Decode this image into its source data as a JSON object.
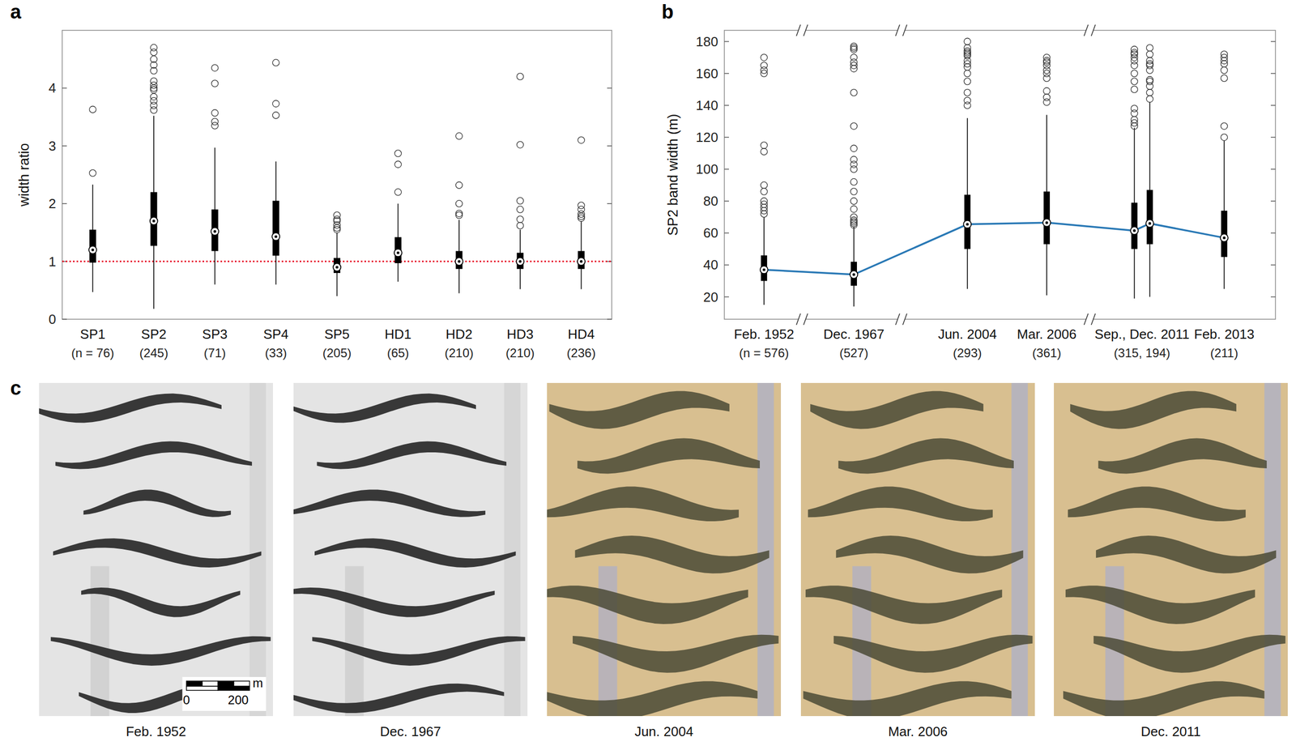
{
  "chart_data": [
    {
      "type": "box",
      "letter": "a",
      "y_label": "width ratio",
      "categories": [
        "SP1",
        "SP2",
        "SP3",
        "SP4",
        "SP5",
        "HD1",
        "HD2",
        "HD3",
        "HD4"
      ],
      "n_labels": [
        "(n = 76)",
        "(245)",
        "(71)",
        "(33)",
        "(205)",
        "(65)",
        "(210)",
        "(210)",
        "(236)"
      ],
      "ylim": [
        0,
        5
      ],
      "yticks": [
        0,
        1,
        2,
        3,
        4
      ],
      "color": "#000000",
      "reference_line": {
        "value": 1,
        "color": "#e8112d",
        "line_style": "dotted"
      },
      "boxes": [
        {
          "whisker_low": 0.47,
          "q1": 0.98,
          "median": 1.2,
          "q3": 1.55,
          "whisker_high": 2.33,
          "outliers": [
            2.53,
            3.63
          ]
        },
        {
          "whisker_low": 0.18,
          "q1": 1.27,
          "median": 1.7,
          "q3": 2.2,
          "whisker_high": 3.52,
          "outliers": [
            3.62,
            3.7,
            3.78,
            3.85,
            3.97,
            4.0,
            4.05,
            4.12,
            4.3,
            4.4,
            4.5,
            4.62,
            4.7
          ]
        },
        {
          "whisker_low": 0.6,
          "q1": 1.18,
          "median": 1.52,
          "q3": 1.9,
          "whisker_high": 2.97,
          "outliers": [
            3.35,
            3.42,
            3.57,
            4.08,
            4.35
          ]
        },
        {
          "whisker_low": 0.6,
          "q1": 1.1,
          "median": 1.43,
          "q3": 2.05,
          "whisker_high": 2.73,
          "outliers": [
            3.53,
            3.73,
            4.44
          ]
        },
        {
          "whisker_low": 0.4,
          "q1": 0.8,
          "median": 0.9,
          "q3": 1.06,
          "whisker_high": 1.5,
          "outliers": [
            1.55,
            1.58,
            1.63,
            1.7,
            1.73,
            1.8
          ]
        },
        {
          "whisker_low": 0.65,
          "q1": 0.97,
          "median": 1.15,
          "q3": 1.42,
          "whisker_high": 2.0,
          "outliers": [
            2.2,
            2.68,
            2.87
          ]
        },
        {
          "whisker_low": 0.45,
          "q1": 0.87,
          "median": 1.0,
          "q3": 1.18,
          "whisker_high": 1.72,
          "outliers": [
            1.8,
            1.83,
            2.0,
            2.32,
            3.17
          ]
        },
        {
          "whisker_low": 0.52,
          "q1": 0.87,
          "median": 1.0,
          "q3": 1.15,
          "whisker_high": 1.55,
          "outliers": [
            1.62,
            1.73,
            1.9,
            2.05,
            3.02,
            4.2
          ]
        },
        {
          "whisker_low": 0.52,
          "q1": 0.87,
          "median": 1.0,
          "q3": 1.18,
          "whisker_high": 1.7,
          "outliers": [
            1.75,
            1.78,
            1.82,
            1.9,
            1.97,
            3.1
          ]
        }
      ]
    },
    {
      "type": "box",
      "letter": "b",
      "y_label": "SP2 band width (m)",
      "categories": [
        "Feb. 1952",
        "Dec. 1967",
        "Jun. 2004",
        "Mar. 2006",
        "Sep., Dec. 2011",
        null,
        "Feb. 2013"
      ],
      "n_labels": [
        "(n = 576)",
        "(527)",
        "(293)",
        "(361)",
        "(315, 194)",
        null,
        "(211)"
      ],
      "ylim": [
        6,
        187
      ],
      "yticks": [
        20,
        40,
        60,
        80,
        100,
        120,
        140,
        160,
        180
      ],
      "color": "#000000",
      "boxes": [
        {
          "whisker_low": 15,
          "q1": 30,
          "median": 37,
          "q3": 46,
          "whisker_high": 70,
          "outliers": [
            72,
            74,
            76,
            78,
            80,
            86,
            90,
            111,
            115,
            160,
            162,
            165,
            170
          ]
        },
        {
          "whisker_low": 14,
          "q1": 27,
          "median": 34,
          "q3": 42,
          "whisker_high": 64,
          "outliers": [
            65,
            66,
            67,
            68,
            70,
            75,
            80,
            86,
            92,
            100,
            103,
            106,
            113,
            127,
            148,
            163,
            165,
            167,
            170,
            175,
            176,
            177
          ]
        },
        {
          "whisker_low": 25,
          "q1": 50,
          "median": 65.5,
          "q3": 84,
          "whisker_high": 132,
          "outliers": [
            140,
            143,
            148,
            155,
            160,
            164,
            166,
            168,
            171,
            172,
            173,
            174,
            176,
            180
          ]
        },
        {
          "whisker_low": 21,
          "q1": 53,
          "median": 66.5,
          "q3": 86,
          "whisker_high": 134,
          "outliers": [
            142,
            145,
            149,
            157,
            160,
            162,
            165,
            167,
            168,
            170
          ]
        },
        {
          "whisker_low": 19,
          "q1": 50,
          "median": 61.5,
          "q3": 79,
          "whisker_high": 126,
          "outliers": [
            127,
            129,
            131,
            135,
            138,
            150,
            155,
            160,
            165,
            168,
            170,
            172,
            173,
            175
          ]
        },
        {
          "whisker_low": 20,
          "q1": 53,
          "median": 66,
          "q3": 87,
          "whisker_high": 142,
          "outliers": [
            144,
            148,
            152,
            155,
            156,
            162,
            165,
            166,
            168,
            172,
            176
          ]
        },
        {
          "whisker_low": 25,
          "q1": 45,
          "median": 57,
          "q3": 74,
          "whisker_high": 118,
          "outliers": [
            120,
            127,
            157,
            162,
            166,
            168,
            170,
            172
          ]
        }
      ],
      "series": [
        {
          "type": "line",
          "color": "#2878b5",
          "values": [
            37,
            34,
            65.5,
            66.5,
            61.5,
            66,
            57
          ]
        }
      ]
    }
  ],
  "panel_c": {
    "letter": "c",
    "images": [
      {
        "caption": "Feb. 1952",
        "style": "grayscale"
      },
      {
        "caption": "Dec. 1967",
        "style": "grayscale"
      },
      {
        "caption": "Jun. 2004",
        "style": "color"
      },
      {
        "caption": "Mar. 2006",
        "style": "color"
      },
      {
        "caption": "Dec. 2011",
        "style": "color"
      }
    ],
    "scale_bar": {
      "labels": [
        0,
        200
      ],
      "unit": "m"
    }
  }
}
